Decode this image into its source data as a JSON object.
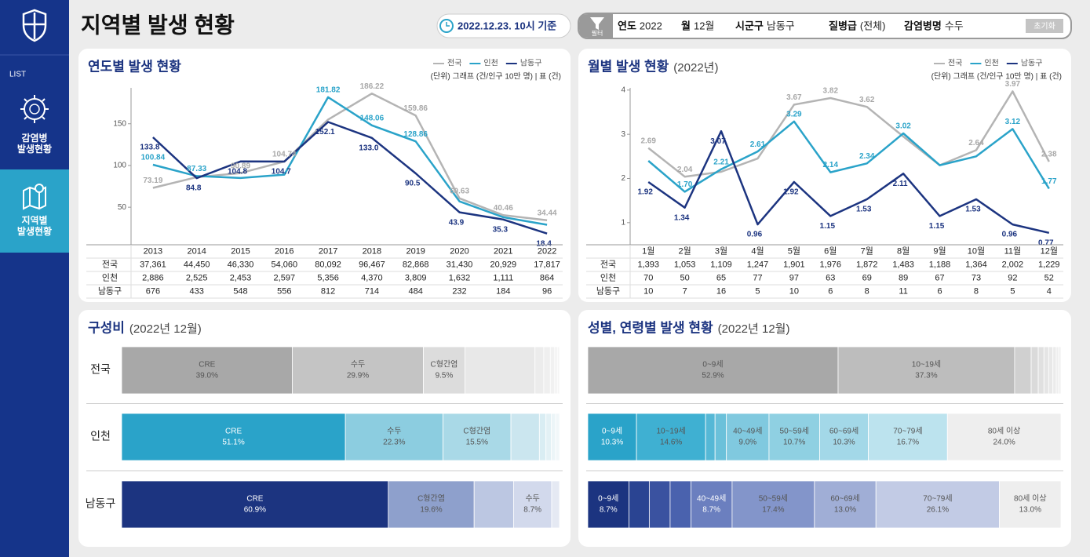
{
  "sidebar": {
    "list_label": "LIST",
    "menu": [
      {
        "lines": [
          "감염병",
          "발생현황"
        ]
      },
      {
        "lines": [
          "지역별",
          "발생현황"
        ]
      }
    ]
  },
  "header": {
    "title": "지역별 발생 현황",
    "timestamp": "2022.12.23. 10시 기준"
  },
  "filter": {
    "icon_label": "필터",
    "items": [
      {
        "label": "연도",
        "value": "2022"
      },
      {
        "label": "월",
        "value": "12월"
      },
      {
        "label": "시군구",
        "value": "남동구"
      },
      {
        "label": "질병급",
        "value": "(전체)"
      },
      {
        "label": "감염병명",
        "value": "수두"
      }
    ],
    "reset": "초기화"
  },
  "chart_data": [
    {
      "type": "line",
      "title": "연도별 발생 현황",
      "unit_note": "(단위) 그래프 (건/인구 10만 명)  |  표 (건)",
      "categories": [
        "2013",
        "2014",
        "2015",
        "2016",
        "2017",
        "2018",
        "2019",
        "2020",
        "2021",
        "2022"
      ],
      "series": [
        {
          "name": "전국",
          "color": "#b4b4b4",
          "values": [
            73.19,
            86.0,
            90.89,
            104.74,
            155.0,
            186.22,
            159.86,
            60.63,
            40.46,
            34.44
          ],
          "value_labels": [
            "73.19",
            null,
            "90.89",
            "104.74",
            null,
            "186.22",
            "159.86",
            "60.63",
            "40.46",
            "34.44"
          ]
        },
        {
          "name": "인천",
          "color": "#2aa3c9",
          "values": [
            100.84,
            87.33,
            85.0,
            89.0,
            181.82,
            148.06,
            128.86,
            57.0,
            38.0,
            29.0
          ],
          "value_labels": [
            "100.84",
            "87.33",
            null,
            null,
            "181.82",
            "148.06",
            "128.86",
            null,
            null,
            null
          ]
        },
        {
          "name": "남동구",
          "color": "#1c3480",
          "values": [
            133.8,
            84.8,
            104.8,
            104.7,
            152.1,
            133.0,
            90.5,
            43.9,
            35.3,
            18.4
          ],
          "value_labels": [
            "133.8",
            "84.8",
            "104.8",
            "104.7",
            "152.1",
            "133.0",
            "90.5",
            "43.9",
            "35.3",
            "18.4"
          ]
        }
      ],
      "ylim": [
        5,
        193
      ],
      "yticks": [
        50,
        100,
        150
      ],
      "table": {
        "rows": [
          {
            "name": "전국",
            "values": [
              "37,361",
              "44,450",
              "46,330",
              "54,060",
              "80,092",
              "96,467",
              "82,868",
              "31,430",
              "20,929",
              "17,817"
            ]
          },
          {
            "name": "인천",
            "values": [
              "2,886",
              "2,525",
              "2,453",
              "2,597",
              "5,356",
              "4,370",
              "3,809",
              "1,632",
              "1,111",
              "864"
            ]
          },
          {
            "name": "남동구",
            "values": [
              "676",
              "433",
              "548",
              "556",
              "812",
              "714",
              "484",
              "232",
              "184",
              "96"
            ]
          }
        ]
      }
    },
    {
      "type": "line",
      "title": "월별 발생 현황",
      "subtitle": "(2022년)",
      "unit_note": "(단위) 그래프 (건/인구 10만 명)  |  표 (건)",
      "categories": [
        "1월",
        "2월",
        "3월",
        "4월",
        "5월",
        "6월",
        "7월",
        "8월",
        "9월",
        "10월",
        "11월",
        "12월"
      ],
      "series": [
        {
          "name": "전국",
          "color": "#b4b4b4",
          "values": [
            2.69,
            2.04,
            2.15,
            2.45,
            3.67,
            3.82,
            3.62,
            2.95,
            2.3,
            2.64,
            3.97,
            2.38
          ],
          "value_labels": [
            "2.69",
            "2.04",
            null,
            null,
            "3.67",
            "3.82",
            "3.62",
            null,
            null,
            "2.64",
            "3.97",
            "2.38"
          ]
        },
        {
          "name": "인천",
          "color": "#2aa3c9",
          "values": [
            2.4,
            1.7,
            2.21,
            2.61,
            3.29,
            2.14,
            2.34,
            3.02,
            2.3,
            2.5,
            3.12,
            1.77
          ],
          "value_labels": [
            null,
            "1.70",
            "2.21",
            "2.61",
            "3.29",
            "2.14",
            "2.34",
            "3.02",
            null,
            null,
            "3.12",
            "1.77"
          ]
        },
        {
          "name": "남동구",
          "color": "#1c3480",
          "values": [
            1.92,
            1.34,
            3.07,
            0.96,
            1.92,
            1.15,
            1.53,
            2.11,
            1.15,
            1.53,
            0.96,
            0.77
          ],
          "value_labels": [
            "1.92",
            "1.34",
            "3.07",
            "0.96",
            "1.92",
            "1.15",
            "1.53",
            "2.11",
            "1.15",
            "1.53",
            "0.96",
            "0.77"
          ]
        }
      ],
      "ylim": [
        0.5,
        4.05
      ],
      "yticks": [
        1,
        2,
        3,
        4
      ],
      "table": {
        "rows": [
          {
            "name": "전국",
            "values": [
              "1,393",
              "1,053",
              "1,109",
              "1,247",
              "1,901",
              "1,976",
              "1,872",
              "1,483",
              "1,188",
              "1,364",
              "2,002",
              "1,229"
            ]
          },
          {
            "name": "인천",
            "values": [
              "70",
              "50",
              "65",
              "77",
              "97",
              "63",
              "69",
              "89",
              "67",
              "73",
              "92",
              "52"
            ]
          },
          {
            "name": "남동구",
            "values": [
              "10",
              "7",
              "16",
              "5",
              "10",
              "6",
              "8",
              "11",
              "6",
              "8",
              "5",
              "4"
            ]
          }
        ]
      }
    },
    {
      "type": "stacked_bar_h",
      "title": "구성비",
      "subtitle": "(2022년 12월)",
      "xlim": [
        0,
        100
      ],
      "rows": [
        {
          "name": "전국",
          "segments": [
            {
              "name": "CRE",
              "value": 39.0,
              "value_label": "39.0%",
              "color": "#a8a8a8"
            },
            {
              "name": "수두",
              "value": 29.9,
              "value_label": "29.9%",
              "color": "#c4c4c4"
            },
            {
              "name": "C형간염",
              "value": 9.5,
              "value_label": "9.5%",
              "color": "#dcdcdc"
            },
            {
              "name": null,
              "value": 16.0,
              "value_label": null,
              "color": "#e8e8e8"
            },
            {
              "name": null,
              "value": 2.0,
              "value_label": null,
              "color": "#ececec"
            },
            {
              "name": null,
              "value": 1.5,
              "value_label": null,
              "color": "#efefef"
            },
            {
              "name": null,
              "value": 1.0,
              "value_label": null,
              "color": "#f1f1f1"
            },
            {
              "name": null,
              "value": 0.6,
              "value_label": null,
              "color": "#f3f3f3"
            },
            {
              "name": null,
              "value": 0.5,
              "value_label": null,
              "color": "#f5f5f5"
            }
          ]
        },
        {
          "name": "인천",
          "segments": [
            {
              "name": "CRE",
              "value": 51.1,
              "value_label": "51.1%",
              "color": "#2aa3c9"
            },
            {
              "name": "수두",
              "value": 22.3,
              "value_label": "22.3%",
              "color": "#8ccde0"
            },
            {
              "name": "C형간염",
              "value": 15.5,
              "value_label": "15.5%",
              "color": "#a9d9e7"
            },
            {
              "name": null,
              "value": 6.5,
              "value_label": null,
              "color": "#cbe6ef"
            },
            {
              "name": null,
              "value": 1.5,
              "value_label": null,
              "color": "#d9edf3"
            },
            {
              "name": null,
              "value": 1.2,
              "value_label": null,
              "color": "#e3f1f5"
            },
            {
              "name": null,
              "value": 1.0,
              "value_label": null,
              "color": "#ecf5f8"
            },
            {
              "name": null,
              "value": 0.9,
              "value_label": null,
              "color": "#f1f7f9"
            }
          ]
        },
        {
          "name": "남동구",
          "segments": [
            {
              "name": "CRE",
              "value": 60.9,
              "value_label": "60.9%",
              "color": "#1c3480"
            },
            {
              "name": "C형간염",
              "value": 19.6,
              "value_label": "19.6%",
              "color": "#8ea0cc"
            },
            {
              "name": null,
              "value": 9.0,
              "value_label": null,
              "color": "#bcc7e2"
            },
            {
              "name": "수두",
              "value": 8.7,
              "value_label": "8.7%",
              "color": "#d2d9ec"
            },
            {
              "name": null,
              "value": 1.8,
              "value_label": null,
              "color": "#e5e9f3"
            }
          ]
        }
      ]
    },
    {
      "type": "stacked_bar_h",
      "title": "성별, 연령별 발생 현황",
      "subtitle": "(2022년 12월)",
      "xlim": [
        0,
        100
      ],
      "rows": [
        {
          "segments": [
            {
              "name": "0~9세",
              "value": 52.9,
              "value_label": "52.9%",
              "color": "#a8a8a8"
            },
            {
              "name": "10~19세",
              "value": 37.3,
              "value_label": "37.3%",
              "color": "#bdbdbd"
            },
            {
              "name": null,
              "value": 3.5,
              "value_label": null,
              "color": "#d0d0d0"
            },
            {
              "name": null,
              "value": 1.5,
              "value_label": null,
              "color": "#dadada"
            },
            {
              "name": null,
              "value": 1.2,
              "value_label": null,
              "color": "#e0e0e0"
            },
            {
              "name": null,
              "value": 1.0,
              "value_label": null,
              "color": "#e5e5e5"
            },
            {
              "name": null,
              "value": 0.9,
              "value_label": null,
              "color": "#e8e8e8"
            },
            {
              "name": null,
              "value": 0.7,
              "value_label": null,
              "color": "#ebebeb"
            },
            {
              "name": null,
              "value": 0.5,
              "value_label": null,
              "color": "#eeeeee"
            },
            {
              "name": null,
              "value": 0.5,
              "value_label": null,
              "color": "#f1f1f1"
            }
          ]
        },
        {
          "segments": [
            {
              "name": "0~9세",
              "value": 10.3,
              "value_label": "10.3%",
              "color": "#2aa3c9"
            },
            {
              "name": "10~19세",
              "value": 14.6,
              "value_label": "14.6%",
              "color": "#3fb0d2"
            },
            {
              "name": null,
              "value": 2.0,
              "value_label": null,
              "color": "#55b8d6"
            },
            {
              "name": null,
              "value": 2.4,
              "value_label": null,
              "color": "#6bc1da"
            },
            {
              "name": "40~49세",
              "value": 9.0,
              "value_label": "9.0%",
              "color": "#80c9df"
            },
            {
              "name": "50~59세",
              "value": 10.7,
              "value_label": "10.7%",
              "color": "#8fd0e2"
            },
            {
              "name": "60~69세",
              "value": 10.3,
              "value_label": "10.3%",
              "color": "#a3d8e8"
            },
            {
              "name": "70~79세",
              "value": 16.7,
              "value_label": "16.7%",
              "color": "#bce3ee"
            },
            {
              "name": "80세 이상",
              "value": 24.0,
              "value_label": "24.0%",
              "color": "#eeeeee"
            }
          ]
        },
        {
          "segments": [
            {
              "name": "0~9세",
              "value": 8.7,
              "value_label": "8.7%",
              "color": "#1c3480"
            },
            {
              "name": null,
              "value": 4.3,
              "value_label": null,
              "color": "#2a4492"
            },
            {
              "name": null,
              "value": 4.4,
              "value_label": null,
              "color": "#3a52a0"
            },
            {
              "name": null,
              "value": 4.4,
              "value_label": null,
              "color": "#4a62ae"
            },
            {
              "name": "40~49세",
              "value": 8.7,
              "value_label": "8.7%",
              "color": "#6b7fbf"
            },
            {
              "name": "50~59세",
              "value": 17.4,
              "value_label": "17.4%",
              "color": "#8395ca"
            },
            {
              "name": "60~69세",
              "value": 13.0,
              "value_label": "13.0%",
              "color": "#a0aed6"
            },
            {
              "name": "70~79세",
              "value": 26.1,
              "value_label": "26.1%",
              "color": "#c2cbe5"
            },
            {
              "name": "80세 이상",
              "value": 13.0,
              "value_label": "13.0%",
              "color": "#eeeeee"
            }
          ]
        }
      ]
    }
  ]
}
